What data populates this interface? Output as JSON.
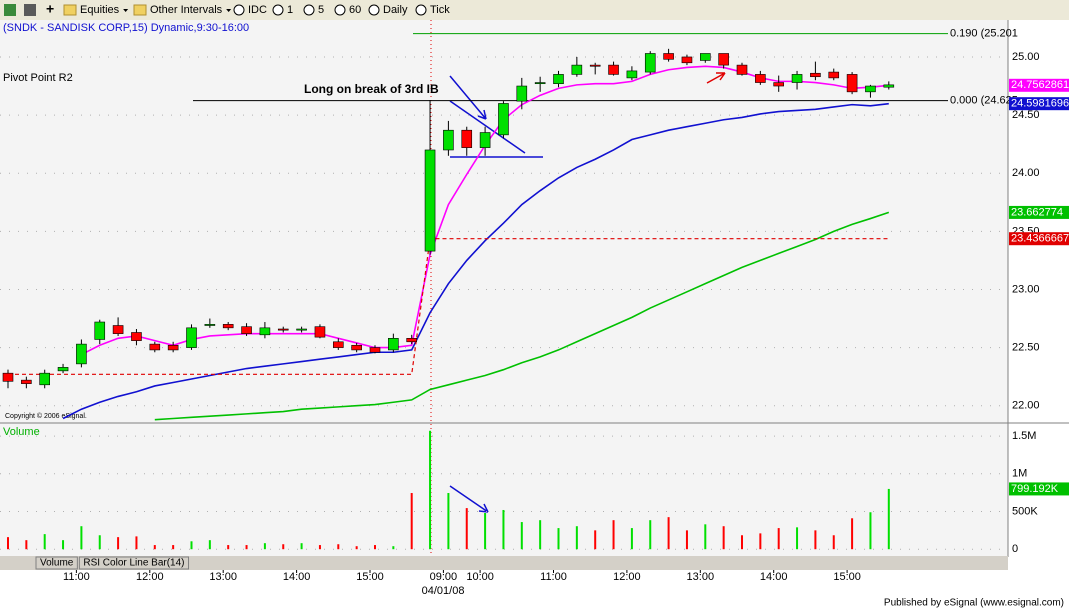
{
  "toolbar": {
    "items": [
      "Equities",
      "Other Intervals",
      "IDC",
      "1",
      "5",
      "60",
      "Daily",
      "Tick"
    ]
  },
  "chart_data": [
    {
      "type": "candlestick",
      "title": "(SNDK - SANDISK CORP,15) Dynamic,9:30-16:00",
      "annotations": [
        "Pivot Point R2",
        "Long on break of 3rd IB",
        "Copyright © 2006 eSignal."
      ],
      "date_label": "04/01/08",
      "categories": [
        null,
        null,
        null,
        null,
        "11:00",
        null,
        null,
        null,
        "12:00",
        null,
        null,
        null,
        "13:00",
        null,
        null,
        null,
        "14:00",
        null,
        null,
        null,
        "15:00",
        null,
        null,
        null,
        "09:00",
        null,
        "10:00",
        null,
        null,
        null,
        "11:00",
        null,
        null,
        null,
        "12:00",
        null,
        null,
        null,
        "13:00",
        null,
        null,
        null,
        "14:00",
        null,
        null,
        null,
        "15:00",
        null,
        null
      ],
      "open": [
        22.28,
        22.22,
        22.18,
        22.3,
        22.36,
        22.57,
        22.69,
        22.63,
        22.53,
        22.52,
        22.5,
        22.69,
        22.7,
        22.68,
        22.61,
        22.66,
        22.65,
        22.68,
        22.55,
        22.52,
        22.5,
        22.48,
        22.58,
        23.33,
        24.2,
        24.37,
        24.22,
        24.33,
        24.62,
        24.77,
        24.77,
        24.85,
        24.93,
        24.93,
        24.82,
        24.87,
        25.03,
        25.0,
        24.97,
        25.03,
        24.93,
        24.85,
        24.78,
        24.78,
        24.86,
        24.87,
        24.85,
        24.7,
        24.74
      ],
      "high": [
        22.31,
        22.25,
        22.31,
        22.36,
        22.57,
        22.74,
        22.76,
        22.66,
        22.55,
        22.55,
        22.7,
        22.75,
        22.72,
        22.71,
        22.72,
        22.68,
        22.68,
        22.7,
        22.58,
        22.54,
        22.52,
        22.62,
        22.61,
        24.63,
        24.45,
        24.4,
        24.4,
        24.62,
        24.82,
        24.83,
        24.88,
        25.0,
        24.95,
        24.96,
        24.92,
        25.05,
        25.07,
        25.02,
        25.03,
        25.03,
        24.95,
        24.88,
        24.84,
        24.88,
        24.96,
        24.9,
        24.87,
        24.76,
        24.79
      ],
      "low": [
        22.15,
        22.15,
        22.15,
        22.28,
        22.33,
        22.53,
        22.6,
        22.52,
        22.46,
        22.46,
        22.48,
        22.67,
        22.65,
        22.6,
        22.58,
        22.63,
        22.63,
        22.58,
        22.48,
        22.46,
        22.45,
        22.46,
        22.53,
        23.3,
        24.15,
        24.15,
        24.15,
        24.3,
        24.55,
        24.7,
        24.74,
        24.83,
        24.85,
        24.84,
        24.8,
        24.85,
        24.96,
        24.93,
        24.95,
        24.9,
        24.84,
        24.76,
        24.7,
        24.72,
        24.8,
        24.8,
        24.68,
        24.65,
        24.72
      ],
      "close": [
        22.21,
        22.19,
        22.28,
        22.33,
        22.53,
        22.72,
        22.62,
        22.56,
        22.48,
        22.48,
        22.67,
        22.7,
        22.67,
        22.62,
        22.67,
        22.65,
        22.66,
        22.59,
        22.5,
        22.48,
        22.46,
        22.58,
        22.55,
        24.2,
        24.37,
        24.22,
        24.35,
        24.6,
        24.75,
        24.78,
        24.85,
        24.93,
        24.92,
        24.85,
        24.88,
        25.03,
        24.98,
        24.95,
        25.03,
        24.93,
        24.85,
        24.78,
        24.75,
        24.85,
        24.83,
        24.82,
        24.7,
        24.75,
        24.76
      ],
      "up_color": "#00e000",
      "down_color": "#ff0000",
      "series": [
        {
          "color": "#ff00ff",
          "dash": false,
          "values": [
            null,
            null,
            null,
            null,
            22.44,
            22.52,
            22.58,
            22.6,
            22.56,
            22.52,
            22.57,
            22.6,
            22.61,
            22.62,
            22.62,
            22.62,
            22.62,
            22.62,
            22.58,
            22.54,
            22.5,
            22.5,
            22.52,
            23.3,
            23.73,
            23.99,
            24.24,
            24.46,
            24.59,
            24.67,
            24.73,
            24.76,
            24.77,
            24.77,
            24.79,
            24.85,
            24.89,
            24.91,
            24.92,
            24.91,
            24.87,
            24.82,
            24.79,
            24.79,
            24.78,
            24.76,
            24.73,
            24.74,
            24.7562861
          ]
        },
        {
          "color": "#1010d0",
          "dash": false,
          "values": [
            null,
            null,
            null,
            21.89,
            21.97,
            22.03,
            22.08,
            22.12,
            22.17,
            22.2,
            22.23,
            22.26,
            22.29,
            22.32,
            22.34,
            22.36,
            22.38,
            22.4,
            22.42,
            22.44,
            22.46,
            22.46,
            22.48,
            22.8,
            23.05,
            23.25,
            23.42,
            23.57,
            23.73,
            23.85,
            23.96,
            24.05,
            24.12,
            24.2,
            24.29,
            24.33,
            24.37,
            24.4,
            24.43,
            24.46,
            24.48,
            24.51,
            24.53,
            24.54,
            24.55,
            24.57,
            24.59,
            24.58,
            24.5981696
          ]
        },
        {
          "color": "#00c000",
          "dash": false,
          "values": [
            null,
            null,
            null,
            null,
            null,
            null,
            null,
            null,
            21.88,
            21.89,
            21.9,
            21.91,
            21.92,
            21.93,
            21.94,
            21.95,
            21.97,
            21.98,
            21.99,
            22.0,
            22.01,
            22.03,
            22.05,
            22.14,
            22.18,
            22.22,
            22.26,
            22.31,
            22.37,
            22.42,
            22.48,
            22.55,
            22.62,
            22.69,
            22.76,
            22.84,
            22.91,
            22.98,
            23.05,
            23.12,
            23.19,
            23.25,
            23.31,
            23.37,
            23.43,
            23.5,
            23.56,
            23.61,
            23.662774
          ]
        },
        {
          "color": "#e00000",
          "dash": true,
          "values": [
            22.27,
            22.27,
            22.27,
            22.27,
            22.27,
            22.27,
            22.27,
            22.27,
            22.27,
            22.27,
            22.27,
            22.27,
            22.27,
            22.27,
            22.27,
            22.27,
            22.27,
            22.27,
            22.27,
            22.27,
            22.27,
            22.27,
            22.27,
            23.4366667,
            23.4366667,
            23.4366667,
            23.4366667,
            23.4366667,
            23.4366667,
            23.4366667,
            23.4366667,
            23.4366667,
            23.4366667,
            23.4366667,
            23.4366667,
            23.4366667,
            23.4366667,
            23.4366667,
            23.4366667,
            23.4366667,
            23.4366667,
            23.4366667,
            23.4366667,
            23.4366667,
            23.4366667,
            23.4366667,
            23.4366667,
            23.4366667,
            23.4366667
          ]
        }
      ],
      "levels": [
        {
          "label": "0.190 (25.201",
          "value": 25.201,
          "color": "#00a000"
        },
        {
          "label": "0.000 (24.625",
          "value": 24.625,
          "color": "#000000"
        }
      ],
      "ylim": [
        21.86,
        25.318
      ],
      "yticks": [
        {
          "value": 22,
          "label": "22.00"
        },
        {
          "value": 22.5,
          "label": "22.50"
        },
        {
          "value": 23,
          "label": "23.00"
        },
        {
          "value": 23.5,
          "label": "23.50"
        },
        {
          "value": 24,
          "label": "24.00"
        },
        {
          "value": 24.5,
          "label": "24.50"
        },
        {
          "value": 25,
          "label": "25.00"
        }
      ],
      "grid": true
    },
    {
      "type": "bar",
      "title": "Volume",
      "color": "#00c000",
      "values": [
        160000,
        120000,
        200000,
        120000,
        305000,
        185000,
        160000,
        170000,
        55000,
        55000,
        105000,
        120000,
        55000,
        55000,
        80000,
        66000,
        80000,
        55000,
        66000,
        40000,
        55000,
        40000,
        745000,
        1570000,
        745000,
        545000,
        480000,
        520000,
        360000,
        385000,
        280000,
        305000,
        250000,
        385000,
        280000,
        385000,
        425000,
        250000,
        330000,
        305000,
        185000,
        210000,
        280000,
        290000,
        250000,
        185000,
        410000,
        490000,
        799192
      ],
      "value_labels": [
        null,
        null,
        null,
        null,
        null,
        null,
        null,
        null,
        null,
        null,
        null,
        null,
        null,
        null,
        null,
        null,
        null,
        null,
        null,
        null,
        null,
        null,
        null,
        null,
        null,
        null,
        null,
        null,
        null,
        null,
        null,
        null,
        null,
        null,
        null,
        null,
        null,
        null,
        null,
        null,
        null,
        null,
        null,
        null,
        null,
        null,
        null,
        null,
        "799.192K"
      ],
      "ylim": [
        -90000,
        1660000
      ],
      "yticks": [
        0,
        {
          "value": 500000,
          "label": "500K"
        },
        {
          "value": 1000000,
          "label": "1M"
        },
        {
          "value": 1500000,
          "label": "1.5M"
        }
      ],
      "grid": true
    }
  ],
  "tabs": [
    "Volume",
    "RSI Color Line Bar(14)"
  ],
  "footer": "Published by eSignal (www.esignal.com)"
}
